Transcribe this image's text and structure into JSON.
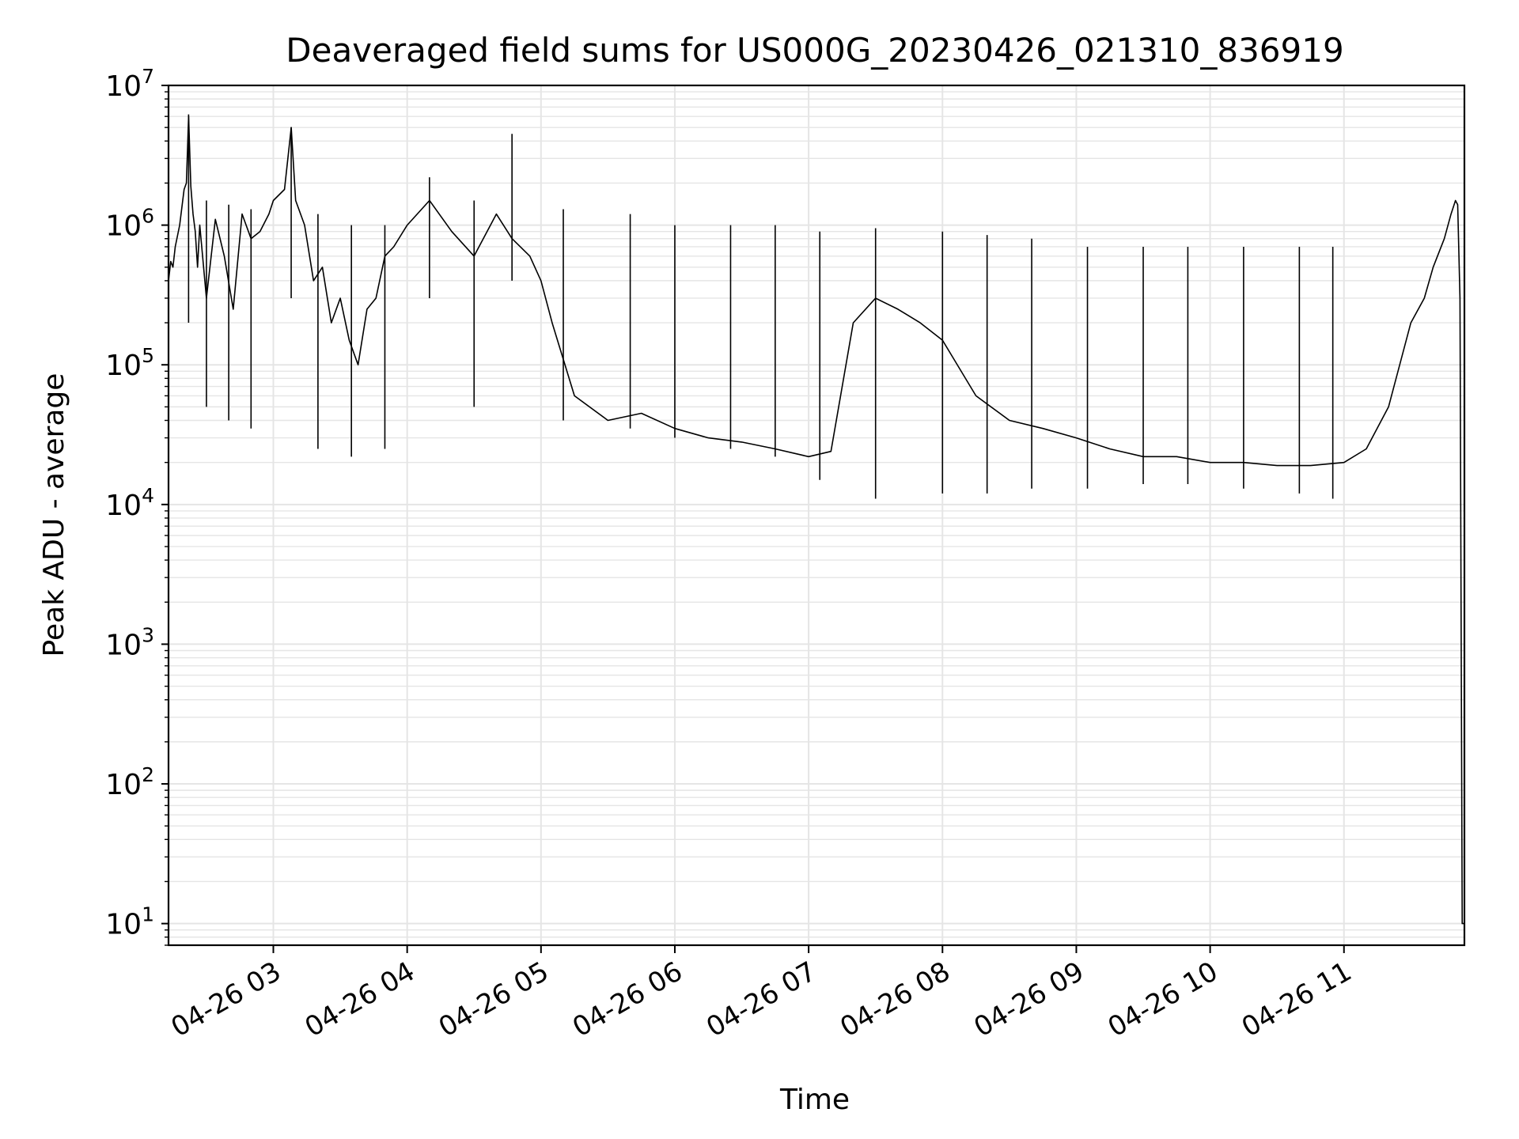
{
  "chart_data": {
    "type": "line",
    "title": "Deaveraged field sums for US000G_20230426_021310_836919",
    "xlabel": "Time",
    "ylabel": "Peak ADU - average",
    "x_range": [
      "2023-04-26 02:13",
      "2023-04-26 11:54"
    ],
    "x_ticks": [
      {
        "value": "2023-04-26 03:00",
        "label": "04-26 03"
      },
      {
        "value": "2023-04-26 04:00",
        "label": "04-26 04"
      },
      {
        "value": "2023-04-26 05:00",
        "label": "04-26 05"
      },
      {
        "value": "2023-04-26 06:00",
        "label": "04-26 06"
      },
      {
        "value": "2023-04-26 07:00",
        "label": "04-26 07"
      },
      {
        "value": "2023-04-26 08:00",
        "label": "04-26 08"
      },
      {
        "value": "2023-04-26 09:00",
        "label": "04-26 09"
      },
      {
        "value": "2023-04-26 10:00",
        "label": "04-26 10"
      },
      {
        "value": "2023-04-26 11:00",
        "label": "04-26 11"
      }
    ],
    "y_scale": "log",
    "y_range": [
      7,
      10000000
    ],
    "y_ticks": [
      {
        "value": 10,
        "base": "10",
        "exp": "1"
      },
      {
        "value": 100,
        "base": "10",
        "exp": "2"
      },
      {
        "value": 1000,
        "base": "10",
        "exp": "3"
      },
      {
        "value": 10000,
        "base": "10",
        "exp": "4"
      },
      {
        "value": 100000,
        "base": "10",
        "exp": "5"
      },
      {
        "value": 1000000,
        "base": "10",
        "exp": "6"
      },
      {
        "value": 10000000,
        "base": "10",
        "exp": "7"
      }
    ],
    "grid": true,
    "grid_minor": true,
    "line_color": "#000000",
    "grid_color": "#e5e5e5",
    "series": [
      {
        "x": [
          "2023-04-26 02:13",
          "2023-04-26 02:14",
          "2023-04-26 02:15",
          "2023-04-26 02:16",
          "2023-04-26 02:18",
          "2023-04-26 02:20",
          "2023-04-26 02:21",
          "2023-04-26 02:22",
          "2023-04-26 02:23",
          "2023-04-26 02:24",
          "2023-04-26 02:25",
          "2023-04-26 02:26",
          "2023-04-26 02:27",
          "2023-04-26 02:30",
          "2023-04-26 02:34",
          "2023-04-26 02:38",
          "2023-04-26 02:42",
          "2023-04-26 02:46",
          "2023-04-26 02:50",
          "2023-04-26 02:54",
          "2023-04-26 02:58",
          "2023-04-26 03:00",
          "2023-04-26 03:05",
          "2023-04-26 03:08",
          "2023-04-26 03:10",
          "2023-04-26 03:14",
          "2023-04-26 03:18",
          "2023-04-26 03:22",
          "2023-04-26 03:26",
          "2023-04-26 03:30",
          "2023-04-26 03:34",
          "2023-04-26 03:38",
          "2023-04-26 03:42",
          "2023-04-26 03:46",
          "2023-04-26 03:50",
          "2023-04-26 03:54",
          "2023-04-26 04:00",
          "2023-04-26 04:10",
          "2023-04-26 04:20",
          "2023-04-26 04:30",
          "2023-04-26 04:40",
          "2023-04-26 04:47",
          "2023-04-26 04:55",
          "2023-04-26 05:00",
          "2023-04-26 05:05",
          "2023-04-26 05:15",
          "2023-04-26 05:30",
          "2023-04-26 05:45",
          "2023-04-26 06:00",
          "2023-04-26 06:15",
          "2023-04-26 06:30",
          "2023-04-26 06:45",
          "2023-04-26 07:00",
          "2023-04-26 07:10",
          "2023-04-26 07:20",
          "2023-04-26 07:30",
          "2023-04-26 07:40",
          "2023-04-26 07:50",
          "2023-04-26 08:00",
          "2023-04-26 08:15",
          "2023-04-26 08:30",
          "2023-04-26 08:45",
          "2023-04-26 09:00",
          "2023-04-26 09:15",
          "2023-04-26 09:30",
          "2023-04-26 09:45",
          "2023-04-26 10:00",
          "2023-04-26 10:15",
          "2023-04-26 10:30",
          "2023-04-26 10:45",
          "2023-04-26 11:00",
          "2023-04-26 11:10",
          "2023-04-26 11:20",
          "2023-04-26 11:30",
          "2023-04-26 11:36",
          "2023-04-26 11:40",
          "2023-04-26 11:45",
          "2023-04-26 11:48",
          "2023-04-26 11:50",
          "2023-04-26 11:51",
          "2023-04-26 11:52",
          "2023-04-26 11:53",
          "2023-04-26 11:54"
        ],
        "values": [
          400000,
          550000,
          500000,
          700000,
          1000000,
          1800000,
          2000000,
          6000000,
          1900000,
          1200000,
          900000,
          500000,
          1000000,
          300000,
          1100000,
          600000,
          250000,
          1200000,
          800000,
          900000,
          1200000,
          1500000,
          1800000,
          5000000,
          1500000,
          1000000,
          400000,
          500000,
          200000,
          300000,
          150000,
          100000,
          250000,
          300000,
          600000,
          700000,
          1000000,
          1500000,
          900000,
          600000,
          1200000,
          800000,
          600000,
          400000,
          200000,
          60000,
          40000,
          45000,
          35000,
          30000,
          28000,
          25000,
          22000,
          24000,
          200000,
          300000,
          250000,
          200000,
          150000,
          60000,
          40000,
          35000,
          30000,
          25000,
          22000,
          22000,
          20000,
          20000,
          19000,
          19000,
          20000,
          25000,
          50000,
          200000,
          300000,
          500000,
          800000,
          1200000,
          1500000,
          1400000,
          300000,
          10,
          10
        ]
      }
    ],
    "spikes": [
      {
        "x": "2023-04-26 02:22",
        "peak": 6200000,
        "base": 200000
      },
      {
        "x": "2023-04-26 03:08",
        "peak": 5000000,
        "base": 300000
      },
      {
        "x": "2023-04-26 04:47",
        "peak": 4500000,
        "base": 400000
      },
      {
        "x": "2023-04-26 02:30",
        "peak": 1500000,
        "base": 50000
      },
      {
        "x": "2023-04-26 02:40",
        "peak": 1400000,
        "base": 40000
      },
      {
        "x": "2023-04-26 02:50",
        "peak": 1300000,
        "base": 35000
      },
      {
        "x": "2023-04-26 03:20",
        "peak": 1200000,
        "base": 25000
      },
      {
        "x": "2023-04-26 03:35",
        "peak": 1000000,
        "base": 22000
      },
      {
        "x": "2023-04-26 03:50",
        "peak": 1000000,
        "base": 25000
      },
      {
        "x": "2023-04-26 04:10",
        "peak": 2200000,
        "base": 300000
      },
      {
        "x": "2023-04-26 04:30",
        "peak": 1500000,
        "base": 50000
      },
      {
        "x": "2023-04-26 05:10",
        "peak": 1300000,
        "base": 40000
      },
      {
        "x": "2023-04-26 05:40",
        "peak": 1200000,
        "base": 35000
      },
      {
        "x": "2023-04-26 06:00",
        "peak": 1000000,
        "base": 30000
      },
      {
        "x": "2023-04-26 06:25",
        "peak": 1000000,
        "base": 25000
      },
      {
        "x": "2023-04-26 06:45",
        "peak": 1000000,
        "base": 22000
      },
      {
        "x": "2023-04-26 07:05",
        "peak": 900000,
        "base": 15000
      },
      {
        "x": "2023-04-26 07:30",
        "peak": 950000,
        "base": 11000
      },
      {
        "x": "2023-04-26 08:00",
        "peak": 900000,
        "base": 12000
      },
      {
        "x": "2023-04-26 08:20",
        "peak": 850000,
        "base": 12000
      },
      {
        "x": "2023-04-26 08:40",
        "peak": 800000,
        "base": 13000
      },
      {
        "x": "2023-04-26 09:05",
        "peak": 700000,
        "base": 13000
      },
      {
        "x": "2023-04-26 09:30",
        "peak": 700000,
        "base": 14000
      },
      {
        "x": "2023-04-26 09:50",
        "peak": 700000,
        "base": 14000
      },
      {
        "x": "2023-04-26 10:15",
        "peak": 700000,
        "base": 13000
      },
      {
        "x": "2023-04-26 10:40",
        "peak": 700000,
        "base": 12000
      },
      {
        "x": "2023-04-26 10:55",
        "peak": 700000,
        "base": 11000
      }
    ]
  }
}
